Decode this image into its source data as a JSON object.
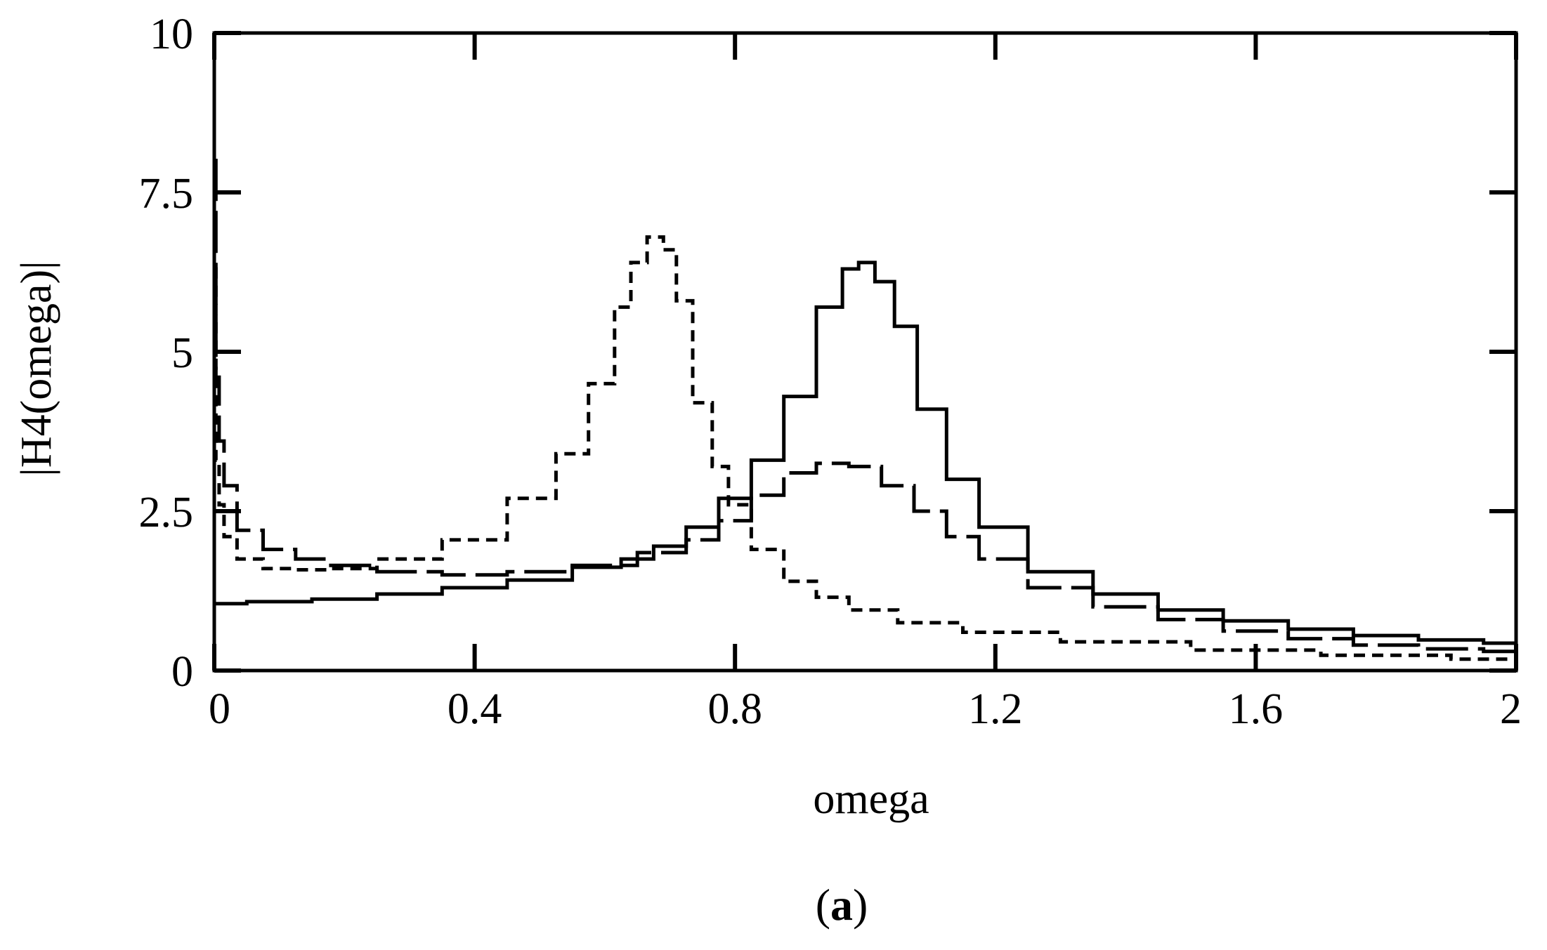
{
  "chart_data": {
    "type": "line",
    "title": "",
    "caption_open": "(",
    "caption_letter": "a",
    "caption_close": ")",
    "xlabel": "omega",
    "ylabel": "|H4(omega)|",
    "xlim": [
      0,
      2
    ],
    "ylim": [
      0,
      10
    ],
    "x_ticks": [
      0,
      0.4,
      0.8,
      1.2,
      1.6,
      2
    ],
    "x_tick_labels": [
      "0",
      "0.4",
      "0.8",
      "1.2",
      "1.6",
      "2"
    ],
    "y_ticks": [
      0,
      2.5,
      5,
      7.5,
      10
    ],
    "y_tick_labels": [
      "0",
      "2.5",
      "5",
      "7.5",
      "10"
    ],
    "grid": false,
    "legend": "none",
    "series": [
      {
        "name": "solid",
        "style": "solid",
        "color": "#000000",
        "x": [
          0,
          0.1,
          0.2,
          0.3,
          0.4,
          0.5,
          0.6,
          0.65,
          0.7,
          0.75,
          0.8,
          0.85,
          0.9,
          0.95,
          0.98,
          1.0,
          1.03,
          1.06,
          1.1,
          1.15,
          1.2,
          1.3,
          1.4,
          1.5,
          1.6,
          1.7,
          1.8,
          1.9,
          2.0
        ],
        "y": [
          1.05,
          1.08,
          1.12,
          1.2,
          1.3,
          1.42,
          1.62,
          1.75,
          1.95,
          2.25,
          2.7,
          3.3,
          4.3,
          5.7,
          6.3,
          6.4,
          6.1,
          5.4,
          4.1,
          3.0,
          2.25,
          1.55,
          1.2,
          0.95,
          0.78,
          0.65,
          0.55,
          0.48,
          0.43
        ]
      },
      {
        "name": "long-dashed",
        "style": "long-dash",
        "color": "#000000",
        "x": [
          0,
          0.005,
          0.01,
          0.02,
          0.05,
          0.1,
          0.15,
          0.2,
          0.3,
          0.4,
          0.5,
          0.6,
          0.7,
          0.75,
          0.8,
          0.85,
          0.9,
          0.95,
          1.0,
          1.05,
          1.1,
          1.15,
          1.2,
          1.3,
          1.4,
          1.5,
          1.6,
          1.7,
          1.8,
          1.9,
          2.0
        ],
        "y": [
          8.0,
          4.6,
          3.6,
          2.9,
          2.2,
          1.9,
          1.75,
          1.65,
          1.55,
          1.5,
          1.55,
          1.65,
          1.85,
          2.05,
          2.35,
          2.75,
          3.1,
          3.25,
          3.2,
          2.9,
          2.5,
          2.1,
          1.75,
          1.3,
          1.0,
          0.8,
          0.62,
          0.5,
          0.4,
          0.34,
          0.3
        ]
      },
      {
        "name": "short-dashed",
        "style": "short-dash",
        "color": "#000000",
        "x": [
          0,
          0.005,
          0.01,
          0.02,
          0.05,
          0.1,
          0.15,
          0.2,
          0.3,
          0.4,
          0.5,
          0.55,
          0.6,
          0.63,
          0.65,
          0.68,
          0.7,
          0.72,
          0.75,
          0.78,
          0.8,
          0.85,
          0.9,
          0.95,
          1.0,
          1.1,
          1.2,
          1.4,
          1.6,
          1.8,
          2.0
        ],
        "y": [
          6.3,
          3.3,
          2.6,
          2.1,
          1.75,
          1.6,
          1.58,
          1.6,
          1.75,
          2.05,
          2.7,
          3.4,
          4.5,
          5.7,
          6.4,
          6.8,
          6.6,
          5.8,
          4.2,
          3.2,
          2.6,
          1.9,
          1.4,
          1.15,
          0.95,
          0.75,
          0.6,
          0.45,
          0.32,
          0.24,
          0.18
        ]
      }
    ]
  }
}
